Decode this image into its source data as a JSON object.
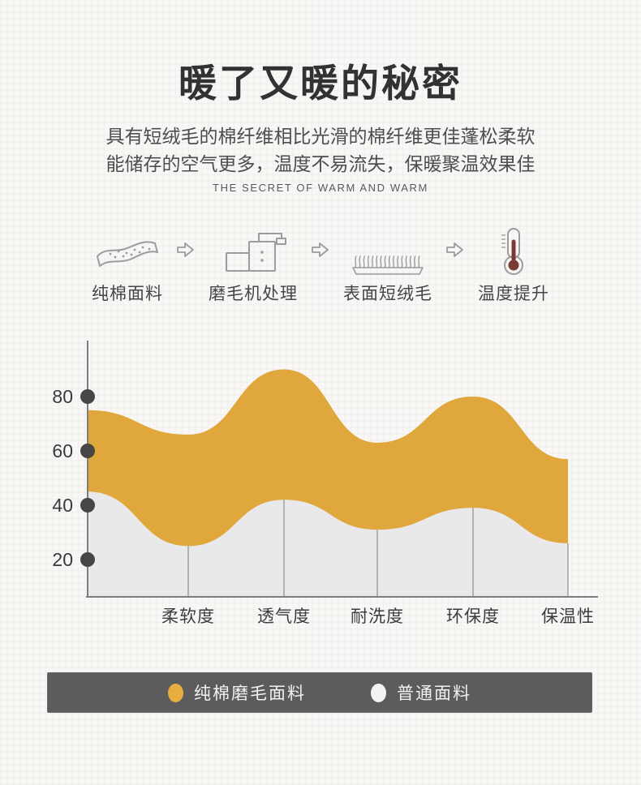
{
  "page": {
    "title": "暖了又暖的秘密",
    "subtitle_line1": "具有短绒毛的棉纤维相比光滑的棉纤维更佳蓬松柔软",
    "subtitle_line2": "能储存的空气更多，温度不易流失，保暖聚温效果佳",
    "subtitle_en": "THE SECRET OF WARM AND WARM"
  },
  "process": {
    "steps": [
      {
        "label": "纯棉面料",
        "icon": "cotton-fabric-icon"
      },
      {
        "label": "磨毛机处理",
        "icon": "brushing-machine-icon"
      },
      {
        "label": "表面短绒毛",
        "icon": "short-fluff-icon"
      },
      {
        "label": "温度提升",
        "icon": "thermometer-icon"
      }
    ],
    "arrow_icon": "right-arrow-icon"
  },
  "chart_data": {
    "type": "area",
    "categories": [
      "柔软度",
      "透气度",
      "耐洗度",
      "环保度",
      "保温性"
    ],
    "yticks": [
      80,
      60,
      40,
      20
    ],
    "ylim": [
      0,
      100
    ],
    "grid": false,
    "legend_position": "bottom",
    "series": [
      {
        "name": "纯棉磨毛面料",
        "color": "#E0A73C",
        "legend_swatch": "#E8AC3F",
        "left_edge_value": 75,
        "values": [
          66,
          90,
          63,
          80,
          57
        ]
      },
      {
        "name": "普通面料",
        "color": "#E9E9EB",
        "legend_swatch": "#F3F3F1",
        "left_edge_value": 45,
        "values": [
          25,
          42,
          31,
          39,
          26
        ]
      }
    ],
    "axis_color": "#7d7d7d",
    "tick_dot_color": "#464646",
    "divider_color": "#9b9b9b"
  }
}
